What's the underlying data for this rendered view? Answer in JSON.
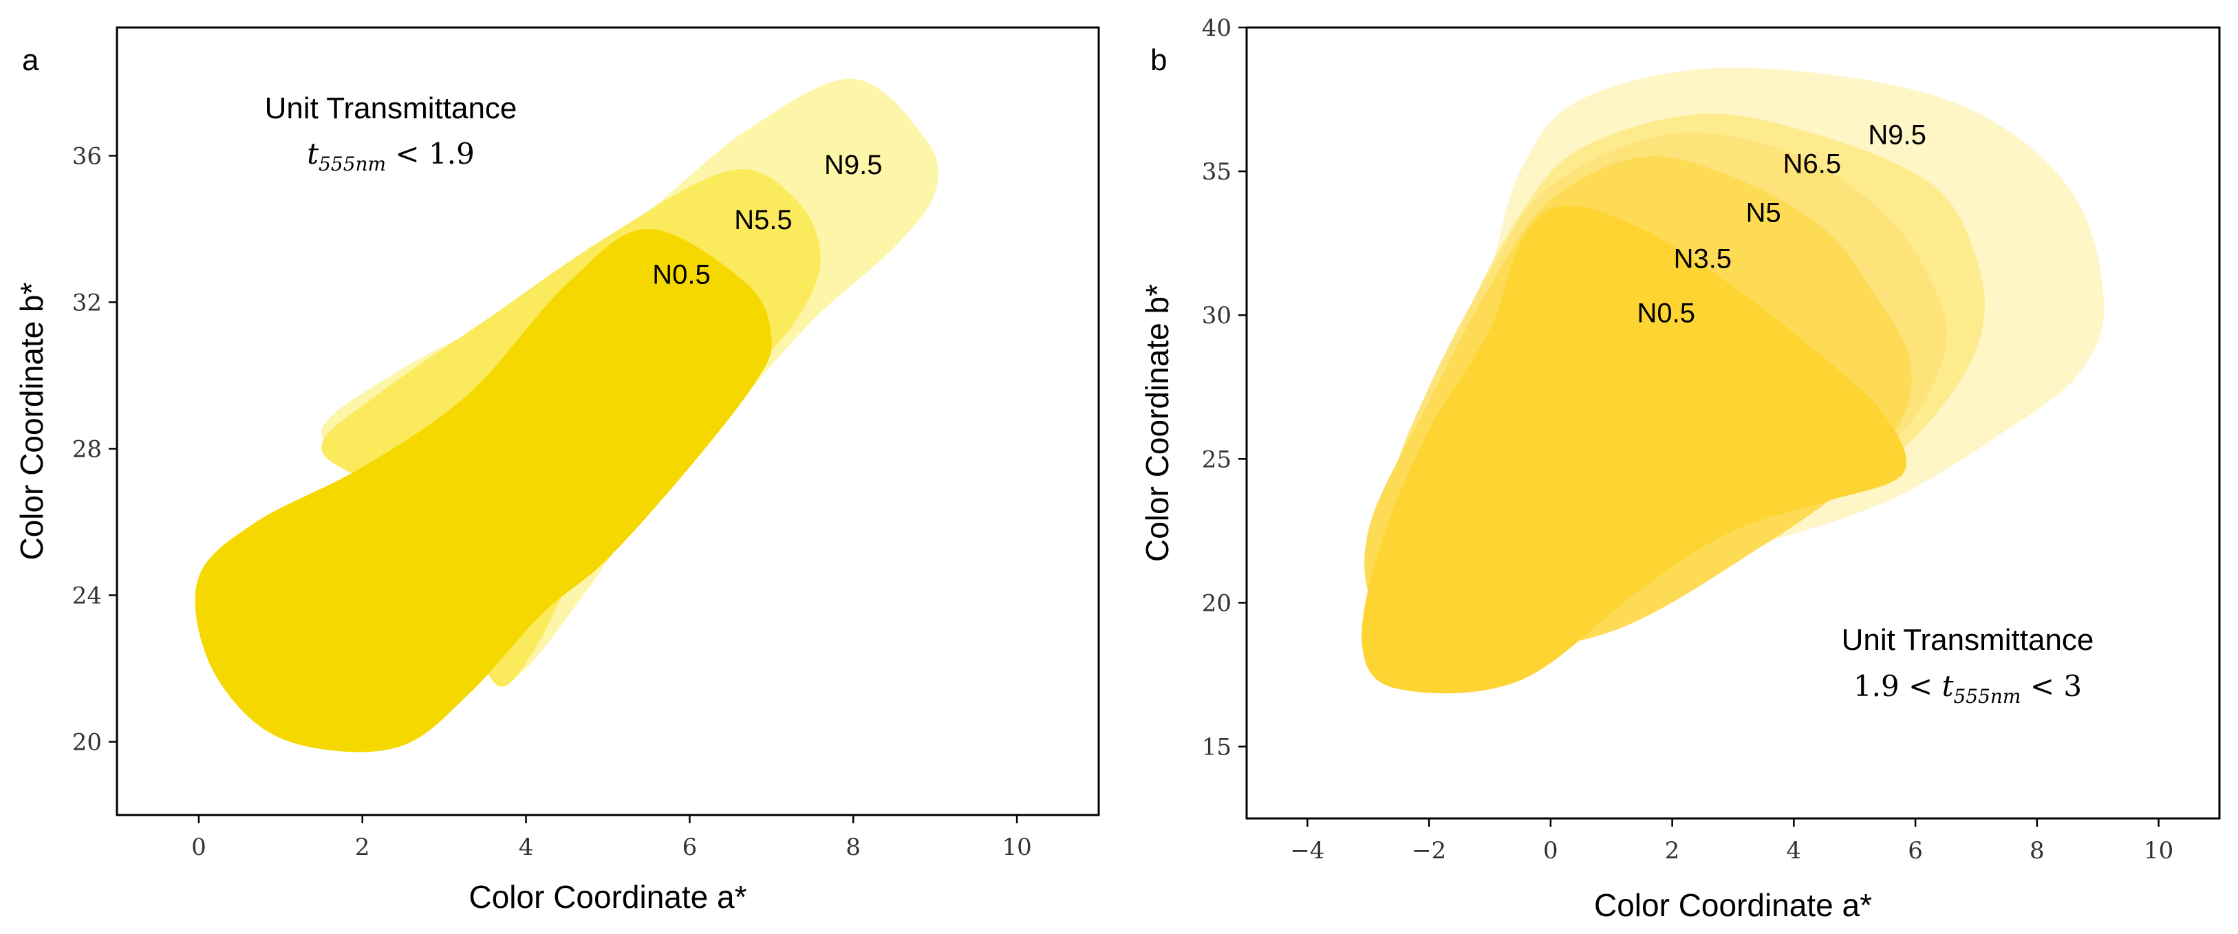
{
  "chart_data": [
    {
      "type": "area",
      "panel": "a",
      "xlabel": "Color Coordinate a*",
      "ylabel": "Color Coordinate b*",
      "xlim": [
        -1,
        11
      ],
      "ylim": [
        18,
        39.5
      ],
      "xticks": [
        "0",
        "2",
        "4",
        "6",
        "8",
        "10"
      ],
      "yticks": [
        "20",
        "24",
        "28",
        "32",
        "36"
      ],
      "annotation": {
        "title": "Unit Transmittance",
        "formula_var": "t",
        "formula_sub": "555nm",
        "formula_rest": " < 1.9"
      },
      "series": [
        {
          "name": "N9.5",
          "color": "#fdf5a8",
          "label_pos": [
            8,
            35.7
          ],
          "boundary": [
            [
              8.0,
              38.1
            ],
            [
              8.9,
              36.4
            ],
            [
              9.0,
              35.0
            ],
            [
              8.5,
              33.5
            ],
            [
              7.5,
              31.5
            ],
            [
              6.5,
              29.0
            ],
            [
              5.5,
              26.5
            ],
            [
              4.7,
              24.0
            ],
            [
              4.0,
              22.0
            ],
            [
              3.6,
              21.7
            ],
            [
              3.3,
              23.0
            ],
            [
              3.0,
              25.0
            ],
            [
              2.2,
              27.3
            ],
            [
              1.5,
              28.5
            ],
            [
              2.5,
              30.2
            ],
            [
              4.0,
              32.0
            ],
            [
              5.5,
              34.5
            ],
            [
              6.7,
              36.7
            ]
          ]
        },
        {
          "name": "N5.5",
          "color": "#fcea5d",
          "label_pos": [
            6.9,
            34.2
          ],
          "boundary": [
            [
              6.5,
              35.6
            ],
            [
              7.3,
              34.8
            ],
            [
              7.6,
              33.2
            ],
            [
              7.3,
              31.5
            ],
            [
              6.5,
              29.5
            ],
            [
              5.5,
              27.0
            ],
            [
              4.7,
              25.0
            ],
            [
              4.1,
              22.5
            ],
            [
              3.7,
              21.5
            ],
            [
              3.4,
              22.5
            ],
            [
              3.0,
              24.5
            ],
            [
              2.3,
              26.7
            ],
            [
              1.5,
              28.0
            ],
            [
              2.2,
              29.5
            ],
            [
              3.5,
              31.5
            ],
            [
              5.0,
              33.8
            ]
          ]
        },
        {
          "name": "N0.5",
          "color": "#f5d800",
          "label_pos": [
            5.9,
            32.7
          ],
          "boundary": [
            [
              5.5,
              34.0
            ],
            [
              6.7,
              32.5
            ],
            [
              7.0,
              31.0
            ],
            [
              6.8,
              29.8
            ],
            [
              6.0,
              27.5
            ],
            [
              5.0,
              25.0
            ],
            [
              4.2,
              23.5
            ],
            [
              3.3,
              21.3
            ],
            [
              2.5,
              19.9
            ],
            [
              1.5,
              19.8
            ],
            [
              0.7,
              20.5
            ],
            [
              0.1,
              22.3
            ],
            [
              0.0,
              24.5
            ],
            [
              0.7,
              26.0
            ],
            [
              2.0,
              27.5
            ],
            [
              3.3,
              29.5
            ],
            [
              4.5,
              32.5
            ]
          ]
        }
      ]
    },
    {
      "type": "area",
      "panel": "b",
      "xlabel": "Color Coordinate a*",
      "ylabel": "Color Coordinate b*",
      "xlim": [
        -5,
        11
      ],
      "ylim": [
        12.5,
        40
      ],
      "xticks": [
        "−4",
        "−2",
        "0",
        "2",
        "4",
        "6",
        "8",
        "10"
      ],
      "yticks": [
        "15",
        "20",
        "25",
        "30",
        "35",
        "40"
      ],
      "annotation": {
        "title": "Unit Transmittance",
        "formula_pre": "1.9 < ",
        "formula_var": "t",
        "formula_sub": "555nm",
        "formula_rest": " < 3"
      },
      "series": [
        {
          "name": "N9.5",
          "color": "#fef6c6",
          "label_pos": [
            5.7,
            36.2
          ],
          "boundary": [
            [
              3.0,
              38.6
            ],
            [
              6.5,
              37.5
            ],
            [
              8.5,
              34.5
            ],
            [
              9.1,
              30.5
            ],
            [
              8.7,
              28.0
            ],
            [
              7.5,
              26.0
            ],
            [
              5.5,
              23.5
            ],
            [
              3.0,
              21.8
            ],
            [
              0.5,
              20.5
            ],
            [
              -1.0,
              22.0
            ],
            [
              -1.5,
              25.0
            ],
            [
              -1.7,
              27.5
            ],
            [
              -1.0,
              31.5
            ],
            [
              -0.5,
              35.0
            ],
            [
              0.5,
              37.5
            ]
          ]
        },
        {
          "name": "N6.5",
          "color": "#fdeb8e",
          "label_pos": [
            4.3,
            35.2
          ],
          "boundary": [
            [
              2.5,
              37.0
            ],
            [
              4.5,
              36.2
            ],
            [
              6.3,
              34.5
            ],
            [
              7.0,
              32.0
            ],
            [
              7.1,
              29.5
            ],
            [
              6.5,
              27.0
            ],
            [
              5.3,
              24.5
            ],
            [
              3.5,
              22.5
            ],
            [
              1.0,
              20.5
            ],
            [
              -1.0,
              20.5
            ],
            [
              -2.0,
              22.5
            ],
            [
              -2.2,
              25.5
            ],
            [
              -1.5,
              29.5
            ],
            [
              -0.5,
              33.5
            ],
            [
              0.5,
              35.8
            ]
          ]
        },
        {
          "name": "N5",
          "color": "#fde37a",
          "label_pos": [
            3.5,
            33.5
          ],
          "boundary": [
            [
              2.0,
              36.3
            ],
            [
              4.0,
              35.6
            ],
            [
              5.5,
              33.5
            ],
            [
              6.3,
              31.0
            ],
            [
              6.5,
              29.0
            ],
            [
              6.0,
              26.5
            ],
            [
              5.0,
              24.5
            ],
            [
              3.5,
              22.0
            ],
            [
              1.0,
              19.8
            ],
            [
              -1.0,
              19.5
            ],
            [
              -2.3,
              21.0
            ],
            [
              -2.6,
              24.0
            ],
            [
              -2.0,
              27.5
            ],
            [
              -1.0,
              31.5
            ],
            [
              0.0,
              34.5
            ]
          ]
        },
        {
          "name": "N3.5",
          "color": "#fddb55",
          "label_pos": [
            2.5,
            31.9
          ],
          "boundary": [
            [
              1.5,
              35.5
            ],
            [
              3.0,
              34.8
            ],
            [
              4.5,
              33.0
            ],
            [
              5.4,
              30.5
            ],
            [
              5.9,
              28.5
            ],
            [
              5.8,
              26.5
            ],
            [
              5.0,
              24.3
            ],
            [
              3.5,
              22.0
            ],
            [
              1.0,
              19.0
            ],
            [
              -1.5,
              18.3
            ],
            [
              -2.8,
              19.5
            ],
            [
              -3.0,
              22.5
            ],
            [
              -2.0,
              27.0
            ],
            [
              -1.0,
              31.0
            ],
            [
              0.0,
              34.0
            ]
          ]
        },
        {
          "name": "N0.5",
          "color": "#fdd432",
          "label_pos": [
            1.9,
            30.0
          ],
          "boundary": [
            [
              0.2,
              33.8
            ],
            [
              1.5,
              33.0
            ],
            [
              3.0,
              31.0
            ],
            [
              4.5,
              28.5
            ],
            [
              5.5,
              26.5
            ],
            [
              5.8,
              24.5
            ],
            [
              4.5,
              23.5
            ],
            [
              3.0,
              22.5
            ],
            [
              1.5,
              20.5
            ],
            [
              -0.5,
              17.3
            ],
            [
              -2.5,
              17.0
            ],
            [
              -3.1,
              18.5
            ],
            [
              -2.8,
              22.0
            ],
            [
              -2.0,
              26.0
            ],
            [
              -1.0,
              29.5
            ],
            [
              -0.5,
              32.5
            ]
          ]
        }
      ]
    }
  ]
}
